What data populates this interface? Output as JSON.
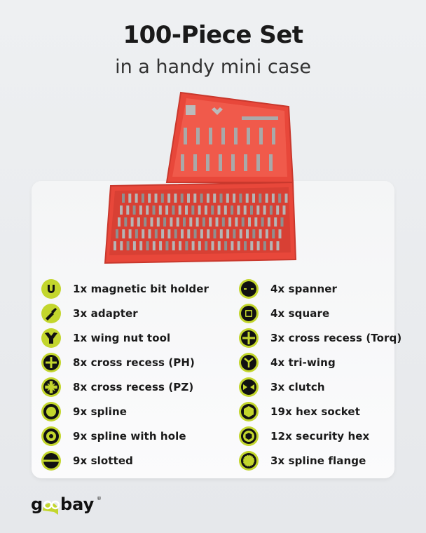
{
  "header": {
    "title": "100-Piece Set",
    "subtitle": "in a handy mini case"
  },
  "colors": {
    "accent": "#c3d62d",
    "case": "#e8473a",
    "text": "#1a1a1a"
  },
  "brand": {
    "logo_text": "goobay"
  },
  "items_left": [
    {
      "label": "1x magnetic bit holder",
      "icon": "magnet-icon"
    },
    {
      "label": "3x adapter",
      "icon": "adapter-icon"
    },
    {
      "label": "1x wing nut tool",
      "icon": "wing-nut-icon"
    },
    {
      "label": "8x cross recess (PH)",
      "icon": "phillips-icon"
    },
    {
      "label": "8x cross recess (PZ)",
      "icon": "pozidriv-icon"
    },
    {
      "label": "9x spline",
      "icon": "torx-icon"
    },
    {
      "label": "9x spline with hole",
      "icon": "torx-hole-icon"
    },
    {
      "label": "9x slotted",
      "icon": "slotted-icon"
    }
  ],
  "items_right": [
    {
      "label": "4x spanner",
      "icon": "spanner-icon"
    },
    {
      "label": "4x square",
      "icon": "square-icon"
    },
    {
      "label": "3x cross recess (Torq)",
      "icon": "torq-icon"
    },
    {
      "label": "4x tri-wing",
      "icon": "tri-wing-icon"
    },
    {
      "label": "3x clutch",
      "icon": "clutch-icon"
    },
    {
      "label": "19x hex socket",
      "icon": "hex-icon"
    },
    {
      "label": "12x security hex",
      "icon": "security-hex-icon"
    },
    {
      "label": "3x spline flange",
      "icon": "spline-flange-icon"
    }
  ]
}
